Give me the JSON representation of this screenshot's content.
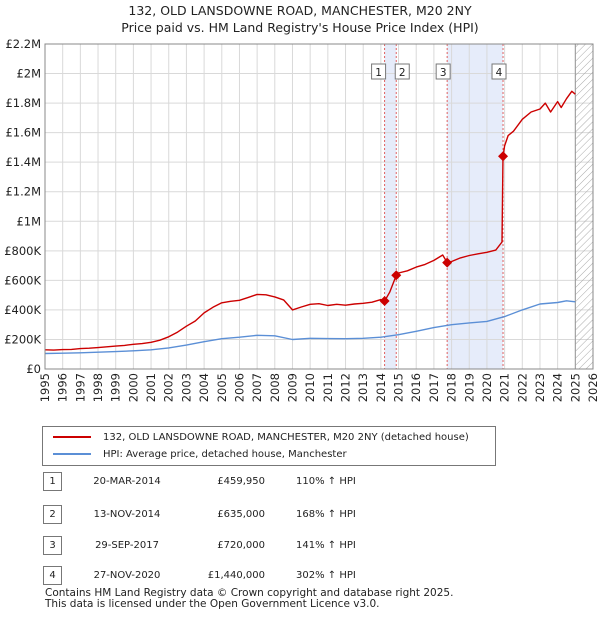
{
  "title_line1": "132, OLD LANSDOWNE ROAD, MANCHESTER, M20 2NY",
  "title_line2": "Price paid vs. HM Land Registry's House Price Index (HPI)",
  "colors": {
    "price_line": "#cc0000",
    "hpi_line": "#5b8fd6",
    "sale_vline": "#e06060",
    "shade": "#e6ecfa",
    "grid": "#d9d9d9",
    "future_hatch": "#aaaaaa"
  },
  "chart_data": {
    "type": "line",
    "title": "132, OLD LANSDOWNE ROAD, MANCHESTER, M20 2NY",
    "subtitle": "Price paid vs. HM Land Registry's House Price Index (HPI)",
    "xlim": [
      1995,
      2026
    ],
    "ylim": [
      0,
      2200000
    ],
    "x_ticks": [
      1995,
      1996,
      1997,
      1998,
      1999,
      2000,
      2001,
      2002,
      2003,
      2004,
      2005,
      2006,
      2007,
      2008,
      2009,
      2010,
      2011,
      2012,
      2013,
      2014,
      2015,
      2016,
      2017,
      2018,
      2019,
      2020,
      2021,
      2022,
      2023,
      2024,
      2025,
      2026
    ],
    "y_ticks": [
      {
        "value": 0,
        "label": "£0"
      },
      {
        "value": 200000,
        "label": "£200K"
      },
      {
        "value": 400000,
        "label": "£400K"
      },
      {
        "value": 600000,
        "label": "£600K"
      },
      {
        "value": 800000,
        "label": "£800K"
      },
      {
        "value": 1000000,
        "label": "£1M"
      },
      {
        "value": 1200000,
        "label": "£1.2M"
      },
      {
        "value": 1400000,
        "label": "£1.4M"
      },
      {
        "value": 1600000,
        "label": "£1.6M"
      },
      {
        "value": 1800000,
        "label": "£1.8M"
      },
      {
        "value": 2000000,
        "label": "£2M"
      },
      {
        "value": 2200000,
        "label": "£2.2M"
      }
    ],
    "grid": true,
    "future_from": 2025.0,
    "shaded_ranges": [
      [
        2014.21,
        2014.87
      ],
      [
        2017.75,
        2020.91
      ]
    ],
    "series": [
      {
        "name": "132, OLD LANSDOWNE ROAD, MANCHESTER, M20 2NY (detached house)",
        "x": [
          1995.0,
          1995.5,
          1996.0,
          1996.5,
          1997.0,
          1997.5,
          1998.0,
          1998.5,
          1999.0,
          1999.5,
          2000.0,
          2000.5,
          2001.0,
          2001.5,
          2002.0,
          2002.5,
          2003.0,
          2003.5,
          2004.0,
          2004.5,
          2005.0,
          2005.5,
          2006.0,
          2006.5,
          2007.0,
          2007.5,
          2008.0,
          2008.5,
          2009.0,
          2009.5,
          2010.0,
          2010.5,
          2011.0,
          2011.5,
          2012.0,
          2012.5,
          2013.0,
          2013.5,
          2014.0,
          2014.21,
          2014.5,
          2014.87,
          2015.0,
          2015.5,
          2016.0,
          2016.5,
          2017.0,
          2017.5,
          2017.75,
          2018.0,
          2018.5,
          2019.0,
          2019.5,
          2020.0,
          2020.5,
          2020.85,
          2020.91,
          2021.0,
          2021.2,
          2021.5,
          2022.0,
          2022.5,
          2023.0,
          2023.3,
          2023.6,
          2024.0,
          2024.2,
          2024.5,
          2024.8,
          2025.0
        ],
        "values": [
          130000,
          128000,
          131000,
          133000,
          138000,
          141000,
          145000,
          150000,
          155000,
          160000,
          167000,
          172000,
          181000,
          195000,
          218000,
          250000,
          290000,
          325000,
          380000,
          418000,
          448000,
          458000,
          465000,
          485000,
          505000,
          502000,
          488000,
          468000,
          400000,
          420000,
          438000,
          442000,
          430000,
          438000,
          432000,
          440000,
          445000,
          452000,
          470000,
          459950,
          520000,
          635000,
          650000,
          665000,
          690000,
          708000,
          735000,
          772000,
          720000,
          728000,
          752000,
          768000,
          780000,
          790000,
          805000,
          860000,
          1440000,
          1510000,
          1580000,
          1610000,
          1690000,
          1740000,
          1760000,
          1800000,
          1740000,
          1810000,
          1770000,
          1830000,
          1880000,
          1860000
        ]
      },
      {
        "name": "HPI: Average price, detached house, Manchester",
        "x": [
          1995.0,
          1996.0,
          1997.0,
          1998.0,
          1999.0,
          2000.0,
          2001.0,
          2002.0,
          2003.0,
          2004.0,
          2005.0,
          2006.0,
          2007.0,
          2008.0,
          2009.0,
          2010.0,
          2011.0,
          2012.0,
          2013.0,
          2014.0,
          2015.0,
          2016.0,
          2017.0,
          2018.0,
          2019.0,
          2020.0,
          2021.0,
          2022.0,
          2023.0,
          2024.0,
          2024.5,
          2025.0
        ],
        "values": [
          105000,
          107000,
          110000,
          114000,
          118000,
          123000,
          130000,
          143000,
          162000,
          185000,
          205000,
          215000,
          228000,
          225000,
          200000,
          208000,
          206000,
          205000,
          208000,
          215000,
          232000,
          255000,
          280000,
          300000,
          312000,
          322000,
          355000,
          400000,
          440000,
          450000,
          462000,
          455000
        ]
      }
    ],
    "sales": [
      {
        "n": "1",
        "x": 2014.21,
        "value": 459950
      },
      {
        "n": "2",
        "x": 2014.87,
        "value": 635000
      },
      {
        "n": "3",
        "x": 2017.75,
        "value": 720000
      },
      {
        "n": "4",
        "x": 2020.91,
        "value": 1440000
      }
    ]
  },
  "legend": {
    "price_label": "132, OLD LANSDOWNE ROAD, MANCHESTER, M20 2NY (detached house)",
    "hpi_label": "HPI: Average price, detached house, Manchester"
  },
  "sales_table": [
    {
      "n": "1",
      "date": "20-MAR-2014",
      "price": "£459,950",
      "hpi": "110% ↑ HPI"
    },
    {
      "n": "2",
      "date": "13-NOV-2014",
      "price": "£635,000",
      "hpi": "168% ↑ HPI"
    },
    {
      "n": "3",
      "date": "29-SEP-2017",
      "price": "£720,000",
      "hpi": "141% ↑ HPI"
    },
    {
      "n": "4",
      "date": "27-NOV-2020",
      "price": "£1,440,000",
      "hpi": "302% ↑ HPI"
    }
  ],
  "footer": {
    "line1": "Contains HM Land Registry data © Crown copyright and database right 2025.",
    "line2": "This data is licensed under the Open Government Licence v3.0."
  }
}
